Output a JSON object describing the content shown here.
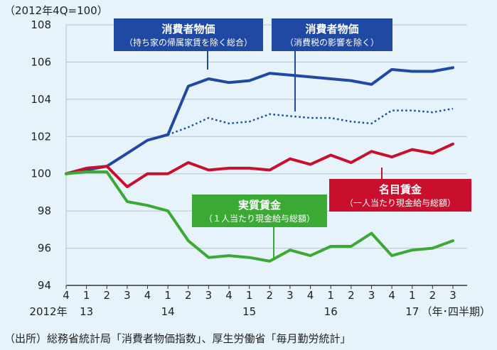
{
  "chart_data": {
    "type": "line",
    "unit_label": "（2012年4Q=100）",
    "ylim": [
      94,
      108
    ],
    "yticks": [
      94,
      96,
      98,
      100,
      102,
      104,
      106,
      108
    ],
    "x_quarter_labels": [
      "4",
      "1",
      "2",
      "3",
      "4",
      "1",
      "2",
      "3",
      "4",
      "1",
      "2",
      "3",
      "4",
      "1",
      "2",
      "3",
      "4",
      "1",
      "2",
      "3"
    ],
    "year_labels": [
      {
        "text": "2012年",
        "index": 0
      },
      {
        "text": "13",
        "index": 1
      },
      {
        "text": "14",
        "index": 5
      },
      {
        "text": "15",
        "index": 9
      },
      {
        "text": "16",
        "index": 13
      },
      {
        "text": "17",
        "index": 17
      }
    ],
    "x_unit": "（年･四半期）",
    "series": [
      {
        "name": "消費者物価（持ち家の帰属家賃を除く総合）",
        "color": "#1f49a3",
        "style": "solid",
        "values": [
          100.0,
          100.2,
          100.4,
          101.1,
          101.8,
          102.1,
          104.7,
          105.1,
          104.9,
          105.0,
          105.4,
          105.3,
          105.2,
          105.1,
          105.0,
          104.8,
          105.6,
          105.5,
          105.5,
          105.7
        ]
      },
      {
        "name": "消費者物価（消費税の影響を除く）",
        "color": "#1f49a3",
        "style": "dotted",
        "values": [
          null,
          null,
          null,
          null,
          null,
          102.1,
          102.5,
          103.0,
          102.7,
          102.8,
          103.2,
          103.1,
          103.0,
          103.0,
          102.8,
          102.7,
          103.4,
          103.4,
          103.3,
          103.5
        ]
      },
      {
        "name": "名目賃金（一人当たり現金給与総額）",
        "color": "#c8102e",
        "style": "solid",
        "values": [
          100.0,
          100.3,
          100.4,
          99.3,
          100.0,
          100.0,
          100.6,
          100.2,
          100.3,
          100.3,
          100.2,
          100.8,
          100.5,
          101.0,
          100.6,
          101.2,
          100.9,
          101.3,
          101.1,
          101.6
        ]
      },
      {
        "name": "実質賃金（１人当たり現金給与総額）",
        "color": "#3aaa35",
        "style": "solid",
        "values": [
          100.0,
          100.1,
          100.1,
          98.5,
          98.3,
          98.0,
          96.4,
          95.5,
          95.6,
          95.5,
          95.3,
          95.9,
          95.6,
          96.1,
          96.1,
          96.8,
          95.6,
          95.9,
          96.0,
          96.4
        ]
      }
    ],
    "annotations": [
      {
        "id": "cpi",
        "title": "消費者物価",
        "subtitle": "（持ち家の帰属家賃を除く総合）",
        "color": "#1f49a3"
      },
      {
        "id": "cpi-ex-tax",
        "title": "消費者物価",
        "subtitle": "（消費税の影響を除く）",
        "color": "#1f49a3"
      },
      {
        "id": "nominal",
        "title": "名目賃金",
        "subtitle": "（一人当たり現金給与総額）",
        "color": "#c8102e"
      },
      {
        "id": "real",
        "title": "実質賃金",
        "subtitle": "（１人当たり現金給与総額）",
        "color": "#3aaa35"
      }
    ],
    "source": "（出所）総務省統計局「消費者物価指数」、厚生労働省「毎月勤労統計」"
  }
}
